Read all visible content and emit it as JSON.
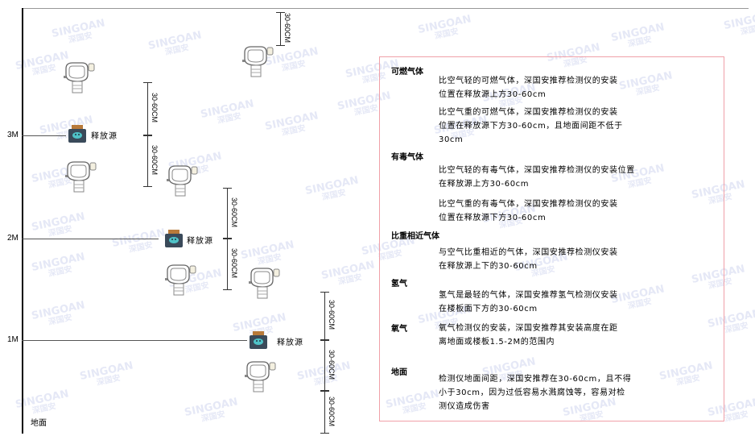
{
  "watermark": {
    "brand": "SINGOAN",
    "cn": "深国安"
  },
  "levels": [
    "3M",
    "2M",
    "1M"
  ],
  "ground_label": "地面",
  "source_label": "释放源",
  "dimension_label": "30-60CM",
  "legend": {
    "sections": [
      {
        "title": "可燃气体",
        "paragraphs": [
          "比空气轻的可燃气体，深国安推荐检测仪的安装\n位置在释放源上方30-60cm",
          "比空气重的可燃气体，深国安推荐检测仪的安装\n位置在释放源下方30-60cm，且地面间距不低于\n30cm"
        ]
      },
      {
        "title": "有毒气体",
        "paragraphs": [
          "比空气轻的有毒气体，深国安推荐检测仪的安装位置\n在释放源上方30-60cm",
          "比空气重的有毒气体，深国安推荐检测仪的安装\n位置在释放源下方30-60cm"
        ]
      },
      {
        "title": "比重相近气体",
        "paragraphs": [
          "与空气比重相近的气体，深国安推荐检测仪安装\n在释放源上下的30-60cm"
        ]
      },
      {
        "title": "氢气",
        "paragraphs": [
          "氢气是最轻的气体，深国安推荐氢气检测仪安装\n在楼板面下方的30-60cm"
        ]
      },
      {
        "title": "氧气",
        "paragraphs": [
          "氧气检测仪的安装，深国安推荐其安装高度在距\n离地面或楼板1.5-2M的范围内"
        ]
      },
      {
        "title": "地面",
        "paragraphs": [
          "检测仪地面间距，深国安推荐在30-60cm，且不得\n小于30cm，因为过低容易水溅腐蚀等，容易对检\n测仪造成伤害"
        ]
      }
    ]
  },
  "colors": {
    "frame": "#f0a0a8",
    "source_body": "#3a4a5a",
    "source_icon": "#4fc3c8"
  }
}
